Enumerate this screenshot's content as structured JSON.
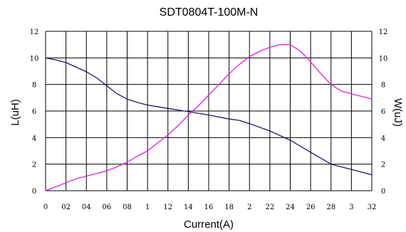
{
  "chart_data": {
    "type": "line",
    "title": "SDT0804T-100M-N",
    "xlabel": "Current(A)",
    "ylabel_left": "L(uH)",
    "ylabel_right": "W(uJ)",
    "xlim": [
      0,
      3.2
    ],
    "ylim_left": [
      0,
      12
    ],
    "ylim_right": [
      0,
      12
    ],
    "grid": true,
    "x_ticks": [
      0,
      0.2,
      0.4,
      0.6,
      0.8,
      1.0,
      1.2,
      1.4,
      1.6,
      1.8,
      2.0,
      2.2,
      2.4,
      2.6,
      2.8,
      3.0,
      3.2
    ],
    "x_tick_labels": [
      "0",
      "02",
      "04",
      "06",
      "08",
      "1",
      "12",
      "14",
      "16",
      "18",
      "2",
      "22",
      "24",
      "26",
      "28",
      "3",
      "32"
    ],
    "y_ticks": [
      0,
      2,
      4,
      6,
      8,
      10,
      12
    ],
    "y_left_tick_labels": [
      "0",
      "2",
      "4",
      "6",
      "8",
      "10",
      "12"
    ],
    "y_right_tick_labels": [
      "0",
      "2",
      "4",
      "6",
      "8",
      "10",
      "12"
    ],
    "series": [
      {
        "axis": "left",
        "color": "#1a1a6e",
        "x": [
          0,
          0.1,
          0.2,
          0.3,
          0.4,
          0.5,
          0.6,
          0.7,
          0.8,
          0.9,
          1.0,
          1.2,
          1.4,
          1.6,
          1.8,
          1.9,
          2.0,
          2.2,
          2.4,
          2.6,
          2.8,
          3.0,
          3.2
        ],
        "values": [
          10.0,
          9.85,
          9.65,
          9.3,
          8.95,
          8.5,
          7.9,
          7.3,
          6.9,
          6.65,
          6.45,
          6.2,
          5.95,
          5.7,
          5.4,
          5.3,
          5.05,
          4.5,
          3.8,
          2.9,
          2.0,
          1.6,
          1.2
        ]
      },
      {
        "axis": "right",
        "color": "#e020e0",
        "x": [
          0,
          0.1,
          0.2,
          0.3,
          0.4,
          0.5,
          0.6,
          0.7,
          0.8,
          0.9,
          1.0,
          1.1,
          1.2,
          1.3,
          1.4,
          1.5,
          1.6,
          1.7,
          1.8,
          1.9,
          2.0,
          2.1,
          2.2,
          2.3,
          2.4,
          2.5,
          2.6,
          2.7,
          2.8,
          2.9,
          3.0,
          3.1,
          3.2
        ],
        "values": [
          0.0,
          0.3,
          0.6,
          0.9,
          1.1,
          1.3,
          1.5,
          1.8,
          2.15,
          2.6,
          3.0,
          3.6,
          4.2,
          4.9,
          5.7,
          6.4,
          7.2,
          8.0,
          8.8,
          9.5,
          10.1,
          10.5,
          10.8,
          11.0,
          11.0,
          10.5,
          9.7,
          8.8,
          8.0,
          7.5,
          7.3,
          7.1,
          6.9
        ]
      }
    ]
  }
}
